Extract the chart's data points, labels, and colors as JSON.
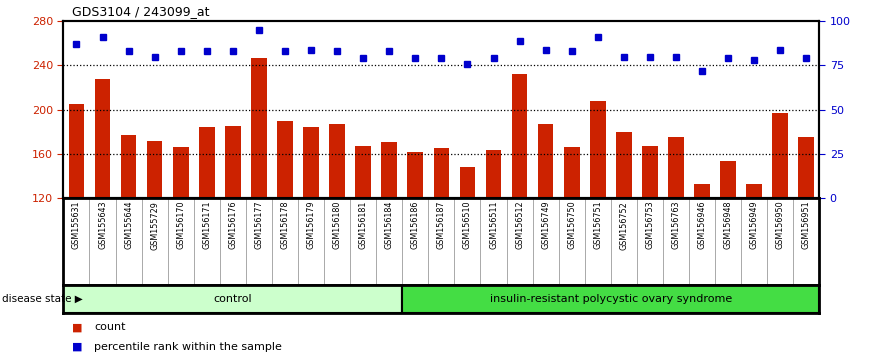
{
  "title": "GDS3104 / 243099_at",
  "samples": [
    "GSM155631",
    "GSM155643",
    "GSM155644",
    "GSM155729",
    "GSM156170",
    "GSM156171",
    "GSM156176",
    "GSM156177",
    "GSM156178",
    "GSM156179",
    "GSM156180",
    "GSM156181",
    "GSM156184",
    "GSM156186",
    "GSM156187",
    "GSM156510",
    "GSM156511",
    "GSM156512",
    "GSM156749",
    "GSM156750",
    "GSM156751",
    "GSM156752",
    "GSM156753",
    "GSM156763",
    "GSM156946",
    "GSM156948",
    "GSM156949",
    "GSM156950",
    "GSM156951"
  ],
  "bar_values": [
    205,
    228,
    177,
    172,
    166,
    184,
    185,
    247,
    190,
    184,
    187,
    167,
    171,
    162,
    165,
    148,
    164,
    232,
    187,
    166,
    208,
    180,
    167,
    175,
    133,
    154,
    133,
    197,
    175
  ],
  "percentile_values": [
    87,
    91,
    83,
    80,
    83,
    83,
    83,
    95,
    83,
    84,
    83,
    79,
    83,
    79,
    79,
    76,
    79,
    89,
    84,
    83,
    91,
    80,
    80,
    80,
    72,
    79,
    78,
    84,
    79
  ],
  "control_count": 13,
  "disease_count": 16,
  "ylim_left": [
    120,
    280
  ],
  "ylim_right": [
    0,
    100
  ],
  "yticks_left": [
    120,
    160,
    200,
    240,
    280
  ],
  "yticks_right": [
    0,
    25,
    50,
    75,
    100
  ],
  "hlines": [
    160,
    200,
    240
  ],
  "bar_color": "#CC2200",
  "dot_color": "#0000CC",
  "control_color": "#CCFFCC",
  "disease_color": "#44DD44",
  "bg_color": "#FFFFFF",
  "xlabel_bg_color": "#CCCCCC",
  "label_left_color": "#CC2200",
  "label_right_color": "#0000CC",
  "legend_bar_label": "count",
  "legend_dot_label": "percentile rank within the sample",
  "group_label": "disease state",
  "control_label": "control",
  "disease_label": "insulin-resistant polycystic ovary syndrome"
}
